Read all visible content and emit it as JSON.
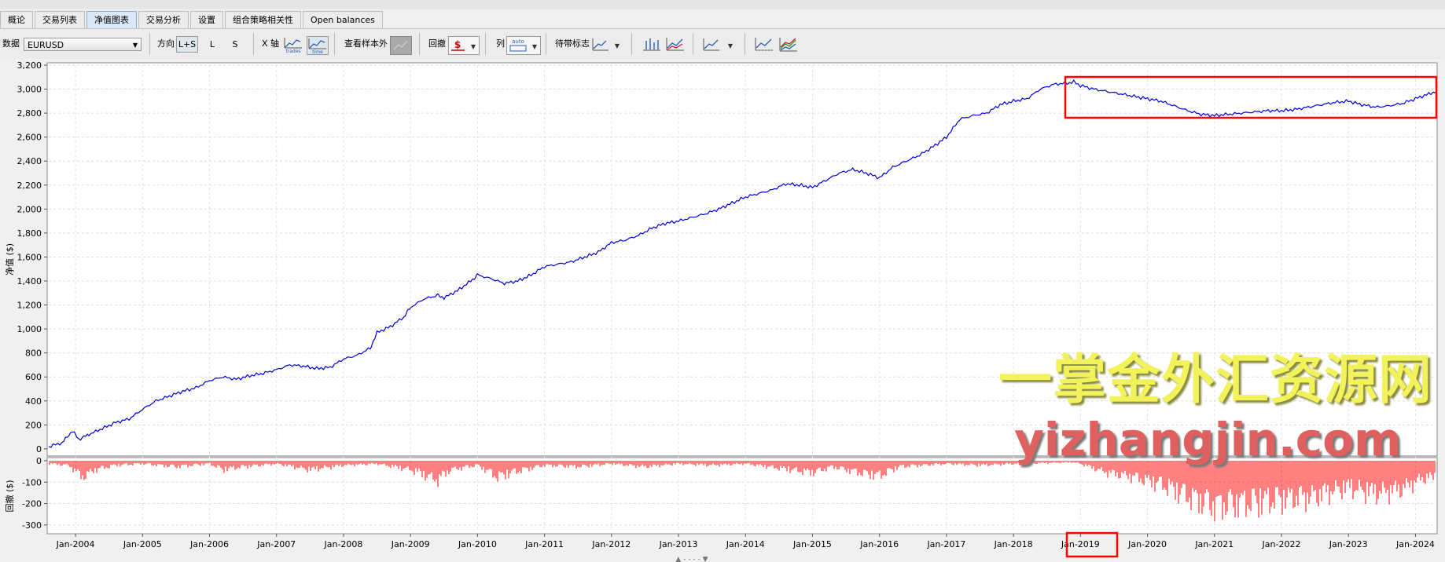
{
  "tabs": [
    "概论",
    "交易列表",
    "净值图表",
    "交易分析",
    "设置",
    "组合策略相关性",
    "Open balances"
  ],
  "active_tab": 2,
  "toolbar": {
    "data_label": "数据",
    "data_value": "EURUSD",
    "direction_label": "方向",
    "direction_options": [
      "L+S",
      "L",
      "S"
    ],
    "x_axis_label": "X 轴",
    "x_axis_trades": "trades",
    "x_axis_time": "time",
    "sample_label": "查看样本外",
    "drawdown_label": "回撤",
    "drawdown_icon_text": "$",
    "column_label": "列",
    "column_icon_text": "auto",
    "markers_label": "待带标志"
  },
  "chart_data": {
    "type": "line",
    "main_panel": {
      "ylabel": "净值 ($)",
      "ylim": [
        -40,
        3200
      ],
      "yticks": [
        0,
        200,
        400,
        600,
        800,
        1000,
        1200,
        1400,
        1600,
        1800,
        2000,
        2200,
        2400,
        2600,
        2800,
        3000,
        3200
      ],
      "ytick_labels": [
        "0",
        "200",
        "400",
        "600",
        "800",
        "1,000",
        "1,200",
        "1,400",
        "1,600",
        "1,800",
        "2,000",
        "2,200",
        "2,400",
        "2,600",
        "2,800",
        "3,000",
        "3,200"
      ],
      "series": [
        {
          "color": "#0000dd",
          "points": [
            [
              2003.6,
              20
            ],
            [
              2003.8,
              50
            ],
            [
              2003.95,
              150
            ],
            [
              2004.05,
              80
            ],
            [
              2004.2,
              120
            ],
            [
              2004.4,
              170
            ],
            [
              2004.6,
              220
            ],
            [
              2004.8,
              250
            ],
            [
              2005.0,
              330
            ],
            [
              2005.2,
              400
            ],
            [
              2005.4,
              440
            ],
            [
              2005.6,
              480
            ],
            [
              2005.8,
              510
            ],
            [
              2006.0,
              570
            ],
            [
              2006.2,
              600
            ],
            [
              2006.4,
              580
            ],
            [
              2006.6,
              610
            ],
            [
              2006.8,
              630
            ],
            [
              2007.0,
              660
            ],
            [
              2007.2,
              700
            ],
            [
              2007.4,
              690
            ],
            [
              2007.6,
              670
            ],
            [
              2007.8,
              680
            ],
            [
              2008.0,
              750
            ],
            [
              2008.2,
              780
            ],
            [
              2008.4,
              840
            ],
            [
              2008.5,
              970
            ],
            [
              2008.7,
              1020
            ],
            [
              2008.9,
              1100
            ],
            [
              2009.0,
              1180
            ],
            [
              2009.2,
              1250
            ],
            [
              2009.4,
              1280
            ],
            [
              2009.5,
              1260
            ],
            [
              2009.7,
              1320
            ],
            [
              2009.9,
              1400
            ],
            [
              2010.0,
              1450
            ],
            [
              2010.2,
              1420
            ],
            [
              2010.4,
              1380
            ],
            [
              2010.6,
              1400
            ],
            [
              2010.8,
              1450
            ],
            [
              2011.0,
              1520
            ],
            [
              2011.2,
              1540
            ],
            [
              2011.4,
              1560
            ],
            [
              2011.6,
              1600
            ],
            [
              2011.8,
              1640
            ],
            [
              2012.0,
              1720
            ],
            [
              2012.2,
              1740
            ],
            [
              2012.4,
              1780
            ],
            [
              2012.6,
              1840
            ],
            [
              2012.8,
              1880
            ],
            [
              2013.0,
              1900
            ],
            [
              2013.2,
              1930
            ],
            [
              2013.4,
              1960
            ],
            [
              2013.6,
              2000
            ],
            [
              2013.8,
              2050
            ],
            [
              2014.0,
              2100
            ],
            [
              2014.2,
              2130
            ],
            [
              2014.4,
              2160
            ],
            [
              2014.6,
              2210
            ],
            [
              2014.8,
              2200
            ],
            [
              2015.0,
              2180
            ],
            [
              2015.2,
              2240
            ],
            [
              2015.4,
              2300
            ],
            [
              2015.6,
              2330
            ],
            [
              2015.8,
              2300
            ],
            [
              2016.0,
              2260
            ],
            [
              2016.2,
              2350
            ],
            [
              2016.4,
              2400
            ],
            [
              2016.6,
              2450
            ],
            [
              2016.8,
              2520
            ],
            [
              2017.0,
              2600
            ],
            [
              2017.2,
              2750
            ],
            [
              2017.4,
              2780
            ],
            [
              2017.6,
              2800
            ],
            [
              2017.8,
              2870
            ],
            [
              2018.0,
              2900
            ],
            [
              2018.2,
              2920
            ],
            [
              2018.4,
              3000
            ],
            [
              2018.6,
              3040
            ],
            [
              2018.8,
              3050
            ],
            [
              2018.9,
              3060
            ],
            [
              2019.0,
              3030
            ],
            [
              2019.2,
              3000
            ],
            [
              2019.4,
              2980
            ],
            [
              2019.6,
              2960
            ],
            [
              2019.8,
              2940
            ],
            [
              2020.0,
              2920
            ],
            [
              2020.2,
              2900
            ],
            [
              2020.4,
              2860
            ],
            [
              2020.6,
              2820
            ],
            [
              2020.8,
              2790
            ],
            [
              2021.0,
              2780
            ],
            [
              2021.2,
              2790
            ],
            [
              2021.4,
              2800
            ],
            [
              2021.6,
              2810
            ],
            [
              2021.8,
              2820
            ],
            [
              2022.0,
              2820
            ],
            [
              2022.2,
              2830
            ],
            [
              2022.4,
              2850
            ],
            [
              2022.6,
              2870
            ],
            [
              2022.8,
              2890
            ],
            [
              2023.0,
              2900
            ],
            [
              2023.2,
              2870
            ],
            [
              2023.4,
              2850
            ],
            [
              2023.6,
              2860
            ],
            [
              2023.8,
              2880
            ],
            [
              2024.0,
              2920
            ],
            [
              2024.2,
              2960
            ],
            [
              2024.3,
              2980
            ]
          ]
        }
      ]
    },
    "drawdown_panel": {
      "ylabel": "回撤 ($)",
      "ylim": [
        -330,
        0
      ],
      "yticks": [
        0,
        -100,
        -200,
        -300
      ],
      "ytick_labels": [
        "0",
        "-100",
        "-200",
        "-300"
      ],
      "color": "#ff0000",
      "envelope": [
        [
          2003.6,
          -20
        ],
        [
          2003.9,
          -30
        ],
        [
          2004.1,
          -110
        ],
        [
          2004.3,
          -60
        ],
        [
          2004.6,
          -30
        ],
        [
          2005.0,
          -20
        ],
        [
          2005.5,
          -40
        ],
        [
          2006.0,
          -20
        ],
        [
          2006.2,
          -60
        ],
        [
          2006.5,
          -40
        ],
        [
          2007.0,
          -20
        ],
        [
          2007.5,
          -60
        ],
        [
          2008.0,
          -30
        ],
        [
          2008.5,
          -20
        ],
        [
          2009.0,
          -60
        ],
        [
          2009.4,
          -130
        ],
        [
          2009.6,
          -60
        ],
        [
          2010.0,
          -30
        ],
        [
          2010.3,
          -110
        ],
        [
          2010.6,
          -70
        ],
        [
          2011.0,
          -30
        ],
        [
          2011.5,
          -40
        ],
        [
          2012.0,
          -20
        ],
        [
          2012.5,
          -40
        ],
        [
          2013.0,
          -20
        ],
        [
          2013.5,
          -30
        ],
        [
          2014.0,
          -20
        ],
        [
          2014.5,
          -50
        ],
        [
          2015.0,
          -80
        ],
        [
          2015.3,
          -40
        ],
        [
          2015.8,
          -90
        ],
        [
          2016.0,
          -100
        ],
        [
          2016.3,
          -40
        ],
        [
          2017.0,
          -20
        ],
        [
          2017.5,
          -30
        ],
        [
          2018.0,
          -20
        ],
        [
          2018.9,
          -10
        ],
        [
          2019.0,
          -20
        ],
        [
          2019.4,
          -80
        ],
        [
          2019.8,
          -110
        ],
        [
          2020.2,
          -160
        ],
        [
          2020.6,
          -240
        ],
        [
          2021.0,
          -305
        ],
        [
          2021.3,
          -290
        ],
        [
          2021.7,
          -280
        ],
        [
          2022.0,
          -260
        ],
        [
          2022.5,
          -240
        ],
        [
          2022.8,
          -200
        ],
        [
          2023.0,
          -180
        ],
        [
          2023.4,
          -220
        ],
        [
          2023.8,
          -190
        ],
        [
          2024.1,
          -120
        ],
        [
          2024.3,
          -110
        ]
      ]
    },
    "x_tick_labels": [
      "Jan-2004",
      "Jan-2005",
      "Jan-2006",
      "Jan-2007",
      "Jan-2008",
      "Jan-2009",
      "Jan-2010",
      "Jan-2011",
      "Jan-2012",
      "Jan-2013",
      "Jan-2014",
      "Jan-2015",
      "Jan-2016",
      "Jan-2017",
      "Jan-2018",
      "Jan-2019",
      "Jan-2020",
      "Jan-2021",
      "Jan-2022",
      "Jan-2023",
      "Jan-2024"
    ],
    "xlim": [
      2003.6,
      2024.3
    ],
    "highlight_color": "#ff0000",
    "highlight_label": "Jan-2019",
    "grid": true
  },
  "watermark": {
    "line1": "一掌金外汇资源网",
    "line2": "yizhangjin.com"
  }
}
